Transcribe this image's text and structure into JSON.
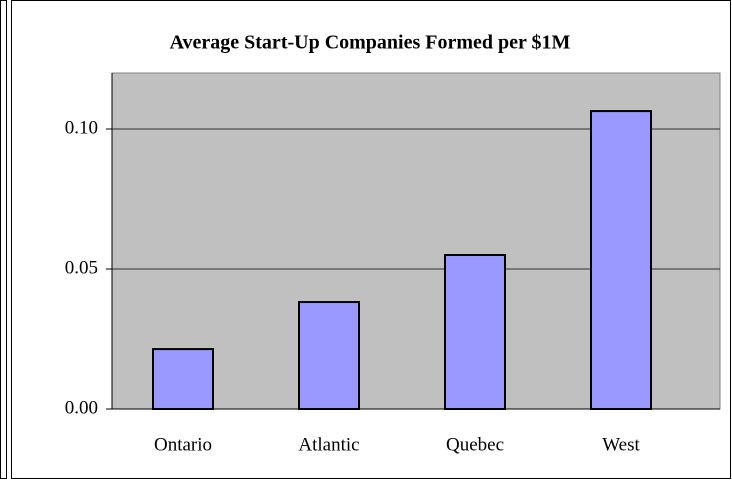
{
  "chart_data": {
    "type": "bar",
    "title": "Average Start-Up Companies Formed per $1M",
    "categories": [
      "Ontario",
      "Atlantic",
      "Quebec",
      "West"
    ],
    "values": [
      0.0214,
      0.0382,
      0.055,
      0.1064
    ],
    "color": "#9999ff",
    "ylim": [
      0,
      0.12
    ],
    "yticks": [
      {
        "value": 0,
        "label": "0.00"
      },
      {
        "value": 0.05,
        "label": "0.05"
      },
      {
        "value": 0.1,
        "label": "0.10"
      }
    ],
    "grid": true
  }
}
